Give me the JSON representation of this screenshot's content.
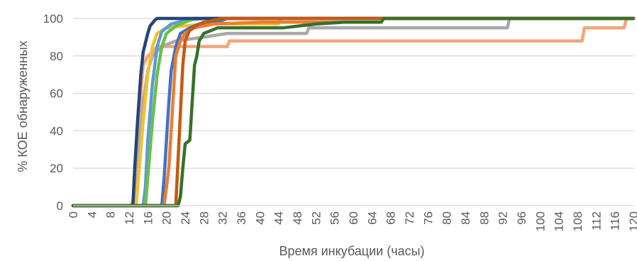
{
  "chart_data": {
    "type": "line",
    "title": "",
    "xlabel": "Время инкубации (часы)",
    "ylabel": "% КОЕ обнаруженных",
    "xlim": [
      0,
      120
    ],
    "ylim": [
      0,
      100
    ],
    "x_ticks": [
      "0",
      "4",
      "8",
      "12",
      "16",
      "20",
      "24",
      "28",
      "32",
      "36",
      "40",
      "44",
      "48",
      "52",
      "56",
      "60",
      "64",
      "68",
      "72",
      "76",
      "80",
      "84",
      "88",
      "92",
      "96",
      "100",
      "104",
      "108",
      "112",
      "116",
      "120"
    ],
    "y_ticks": [
      "0",
      "20",
      "40",
      "60",
      "80",
      "100"
    ],
    "grid": "horizontal",
    "legend": "none",
    "series": [
      {
        "color": "#f4a57a",
        "points": [
          [
            0,
            0
          ],
          [
            12.5,
            0
          ],
          [
            13,
            5
          ],
          [
            13.5,
            20
          ],
          [
            14,
            40
          ],
          [
            14.5,
            60
          ],
          [
            15,
            75
          ],
          [
            16,
            80
          ],
          [
            17,
            82
          ],
          [
            18,
            85
          ],
          [
            28,
            85
          ],
          [
            33,
            85
          ],
          [
            33.5,
            88
          ],
          [
            50,
            88
          ],
          [
            80,
            88
          ],
          [
            109,
            88
          ],
          [
            109.5,
            95
          ],
          [
            118,
            95
          ],
          [
            118.5,
            100
          ],
          [
            120,
            100
          ]
        ]
      },
      {
        "color": "#a9a9a9",
        "points": [
          [
            0,
            0
          ],
          [
            13,
            0
          ],
          [
            13.5,
            10
          ],
          [
            14,
            30
          ],
          [
            15,
            55
          ],
          [
            16,
            72
          ],
          [
            17,
            80
          ],
          [
            19,
            85
          ],
          [
            22,
            88
          ],
          [
            28,
            90
          ],
          [
            33,
            92
          ],
          [
            50,
            92
          ],
          [
            50.5,
            95
          ],
          [
            93,
            95
          ],
          [
            93.5,
            100
          ],
          [
            120,
            100
          ]
        ]
      },
      {
        "color": "#f2c12e",
        "points": [
          [
            0,
            0
          ],
          [
            13.5,
            0
          ],
          [
            14,
            15
          ],
          [
            15,
            45
          ],
          [
            16,
            70
          ],
          [
            17,
            85
          ],
          [
            18,
            92
          ],
          [
            20,
            95
          ],
          [
            28,
            97
          ],
          [
            44,
            97
          ],
          [
            44.5,
            100
          ],
          [
            120,
            100
          ]
        ]
      },
      {
        "color": "#5b9bd5",
        "points": [
          [
            0,
            0
          ],
          [
            15,
            0
          ],
          [
            15.5,
            10
          ],
          [
            16,
            35
          ],
          [
            17,
            65
          ],
          [
            18,
            85
          ],
          [
            19,
            93
          ],
          [
            21,
            97
          ],
          [
            24,
            99
          ],
          [
            28,
            100
          ],
          [
            120,
            100
          ]
        ]
      },
      {
        "color": "#6abf4b",
        "points": [
          [
            0,
            0
          ],
          [
            15.5,
            0
          ],
          [
            16,
            15
          ],
          [
            17,
            45
          ],
          [
            18,
            70
          ],
          [
            19,
            85
          ],
          [
            20,
            92
          ],
          [
            22,
            96
          ],
          [
            24,
            98
          ],
          [
            26,
            100
          ],
          [
            120,
            100
          ]
        ]
      },
      {
        "color": "#264478",
        "points": [
          [
            0,
            0
          ],
          [
            12.8,
            0
          ],
          [
            13.2,
            20
          ],
          [
            13.8,
            45
          ],
          [
            14.5,
            70
          ],
          [
            15,
            82
          ],
          [
            16,
            92
          ],
          [
            16.5,
            96
          ],
          [
            17.5,
            99
          ],
          [
            18,
            100
          ],
          [
            120,
            100
          ]
        ]
      },
      {
        "color": "#4472c4",
        "points": [
          [
            0,
            0
          ],
          [
            19,
            0
          ],
          [
            19.5,
            15
          ],
          [
            20,
            35
          ],
          [
            20.5,
            55
          ],
          [
            21,
            72
          ],
          [
            22,
            85
          ],
          [
            23,
            92
          ],
          [
            25,
            95
          ],
          [
            28,
            98
          ],
          [
            32,
            99
          ],
          [
            33,
            100
          ],
          [
            120,
            100
          ]
        ]
      },
      {
        "color": "#ed7d31",
        "points": [
          [
            0,
            0
          ],
          [
            19.5,
            0
          ],
          [
            20,
            10
          ],
          [
            20.5,
            20
          ],
          [
            21,
            40
          ],
          [
            21.5,
            60
          ],
          [
            22,
            80
          ],
          [
            23,
            88
          ],
          [
            24,
            92
          ],
          [
            26,
            95
          ],
          [
            30,
            97
          ],
          [
            40,
            98
          ],
          [
            56,
            98
          ],
          [
            66,
            98
          ],
          [
            66.5,
            100
          ],
          [
            120,
            100
          ]
        ]
      },
      {
        "color": "#c55a11",
        "points": [
          [
            0,
            0
          ],
          [
            22,
            0
          ],
          [
            22.5,
            25
          ],
          [
            23,
            50
          ],
          [
            23.5,
            75
          ],
          [
            24,
            88
          ],
          [
            25,
            94
          ],
          [
            27,
            97
          ],
          [
            30,
            99
          ],
          [
            32,
            100
          ],
          [
            120,
            100
          ]
        ]
      },
      {
        "color": "#38702a",
        "points": [
          [
            0,
            0
          ],
          [
            22.5,
            0
          ],
          [
            23,
            5
          ],
          [
            23.5,
            20
          ],
          [
            24,
            33
          ],
          [
            25,
            35
          ],
          [
            25.5,
            55
          ],
          [
            26,
            75
          ],
          [
            26.5,
            80
          ],
          [
            27,
            88
          ],
          [
            28,
            92
          ],
          [
            31,
            95
          ],
          [
            45,
            95
          ],
          [
            52,
            97
          ],
          [
            58,
            98
          ],
          [
            66,
            98
          ],
          [
            66.5,
            100
          ],
          [
            120,
            100
          ]
        ]
      }
    ]
  }
}
